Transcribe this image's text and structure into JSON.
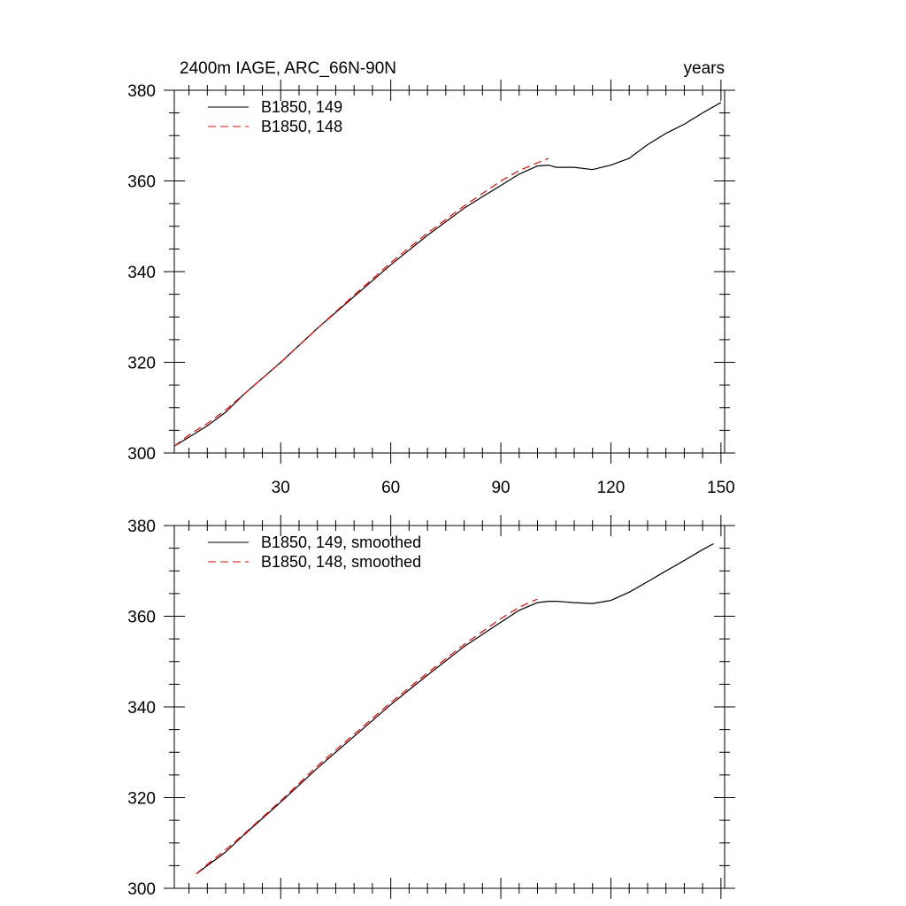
{
  "colors": {
    "series_149": "#000000",
    "series_148": "#ff0000",
    "axes": "#000000",
    "background": "#ffffff"
  },
  "chart_data": [
    {
      "type": "line",
      "title": "2400m IAGE, ARC_66N-90N",
      "title_right": "years",
      "xlabel": "",
      "ylabel": "",
      "xlim": [
        1,
        151
      ],
      "ylim": [
        300,
        380
      ],
      "x_ticks": [
        30,
        60,
        90,
        120,
        150
      ],
      "x_tick_labels": [
        "30",
        "60",
        "90",
        "120",
        "150"
      ],
      "y_ticks": [
        300,
        320,
        340,
        360,
        380
      ],
      "y_tick_labels": [
        "300",
        "320",
        "340",
        "360",
        "380"
      ],
      "grid": false,
      "legend_position": "top-left",
      "series": [
        {
          "name": "B1850, 149",
          "color": "#000000",
          "dash": "solid",
          "x": [
            1,
            5,
            10,
            15,
            20,
            30,
            40,
            50,
            60,
            70,
            80,
            85,
            90,
            95,
            100,
            103,
            105,
            110,
            115,
            120,
            125,
            130,
            135,
            140,
            145,
            150
          ],
          "y": [
            301.5,
            303.5,
            306,
            309,
            313,
            320,
            327.5,
            334.5,
            341.5,
            348,
            354,
            356.5,
            359,
            361.5,
            363.3,
            363.5,
            363,
            363,
            362.5,
            363.5,
            365,
            368,
            370.5,
            372.5,
            375,
            377.3
          ]
        },
        {
          "name": "B1850, 148",
          "color": "#ff0000",
          "dash": "dashed",
          "x": [
            1,
            5,
            10,
            15,
            20,
            30,
            40,
            50,
            60,
            70,
            80,
            90,
            95,
            100,
            103
          ],
          "y": [
            301.5,
            304,
            306.5,
            309.5,
            313,
            320,
            327.5,
            334.8,
            342,
            348.5,
            354.5,
            360,
            362.3,
            364,
            365
          ]
        }
      ]
    },
    {
      "type": "line",
      "title": "",
      "xlabel": "",
      "ylabel": "",
      "xlim": [
        1,
        151
      ],
      "ylim": [
        300,
        380
      ],
      "x_ticks": [
        30,
        60,
        90,
        120,
        150
      ],
      "y_ticks": [
        300,
        320,
        340,
        360,
        380
      ],
      "y_tick_labels": [
        "300",
        "320",
        "340",
        "360",
        "380"
      ],
      "grid": false,
      "legend_position": "top-left",
      "series": [
        {
          "name": "B1850, 149, smoothed",
          "color": "#000000",
          "dash": "solid",
          "x": [
            7,
            10,
            15,
            20,
            30,
            40,
            50,
            60,
            70,
            80,
            85,
            90,
            95,
            100,
            103,
            105,
            110,
            115,
            120,
            125,
            130,
            135,
            140,
            145,
            148
          ],
          "y": [
            303.2,
            305,
            308,
            311.8,
            319,
            326.5,
            333.5,
            340.5,
            347,
            353.3,
            356,
            358.7,
            361.3,
            363,
            363.3,
            363.3,
            363,
            362.8,
            363.5,
            365.3,
            367.6,
            370,
            372.3,
            374.7,
            376
          ]
        },
        {
          "name": "B1850, 148, smoothed",
          "color": "#ff0000",
          "dash": "dashed",
          "x": [
            7,
            10,
            15,
            20,
            30,
            40,
            50,
            60,
            70,
            80,
            90,
            95,
            100
          ],
          "y": [
            303.2,
            305.3,
            308.5,
            312,
            319.3,
            327,
            334,
            341,
            347.5,
            353.8,
            359.5,
            362,
            363.8
          ]
        }
      ]
    }
  ]
}
